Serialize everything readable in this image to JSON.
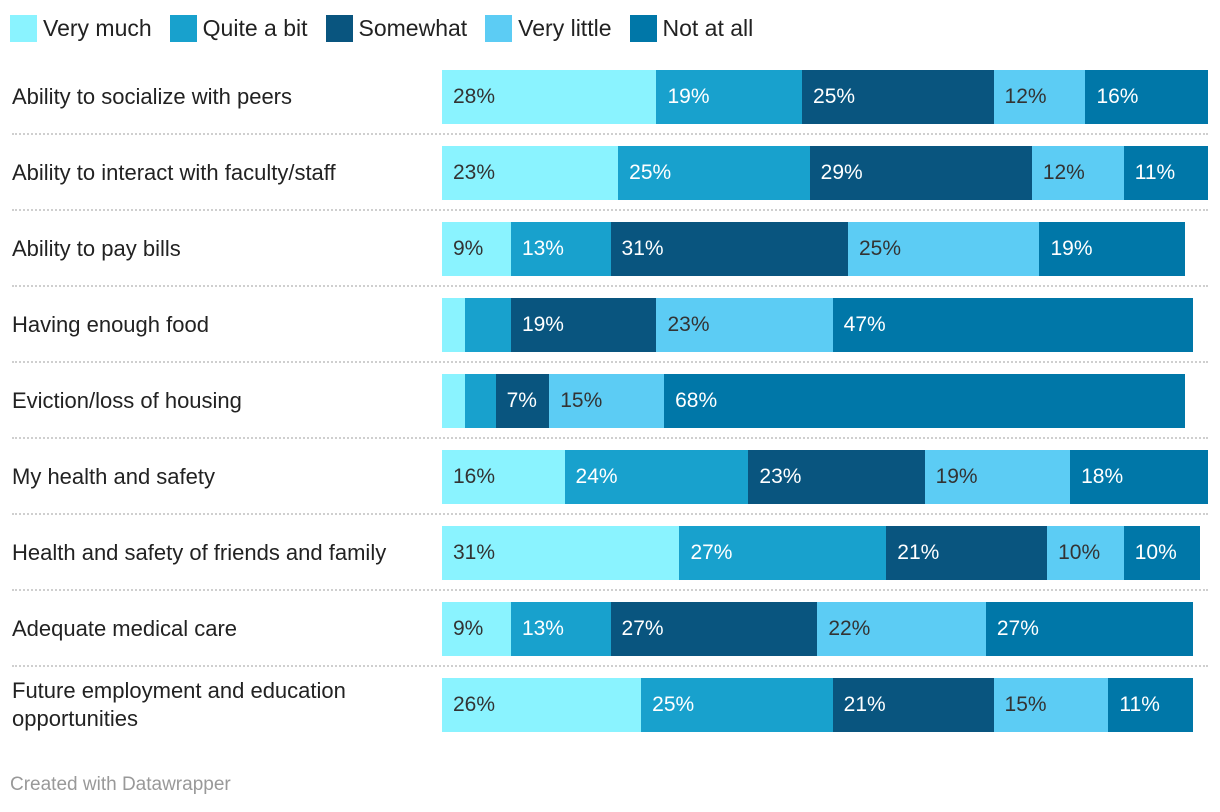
{
  "legend": [
    {
      "label": "Very much",
      "color": "#8AF3FF"
    },
    {
      "label": "Quite a bit",
      "color": "#18A1CD"
    },
    {
      "label": "Somewhat",
      "color": "#09557F"
    },
    {
      "label": "Very little",
      "color": "#5CCCF4"
    },
    {
      "label": "Not at all",
      "color": "#0077A8"
    }
  ],
  "chart_data": {
    "type": "bar",
    "orientation": "horizontal",
    "stacked": true,
    "xlim": [
      0,
      100
    ],
    "categories": [
      "Ability to socialize with peers",
      "Ability to interact with faculty/staff",
      "Ability to pay bills",
      "Having enough food",
      "Eviction/loss of housing",
      "My health and safety",
      "Health and safety of friends and family",
      "Adequate medical care",
      "Future employment and education opportunities"
    ],
    "series": [
      {
        "name": "Very much",
        "values": [
          28,
          23,
          9,
          3,
          3,
          16,
          31,
          9,
          26
        ],
        "labels": [
          "28%",
          "23%",
          "9%",
          "",
          "",
          "16%",
          "31%",
          "9%",
          "26%"
        ]
      },
      {
        "name": "Quite a bit",
        "values": [
          19,
          25,
          13,
          6,
          4,
          24,
          27,
          13,
          25
        ],
        "labels": [
          "19%",
          "25%",
          "13%",
          "",
          "",
          "24%",
          "27%",
          "13%",
          "25%"
        ]
      },
      {
        "name": "Somewhat",
        "values": [
          25,
          29,
          31,
          19,
          7,
          23,
          21,
          27,
          21
        ],
        "labels": [
          "25%",
          "29%",
          "31%",
          "19%",
          "7%",
          "23%",
          "21%",
          "27%",
          "21%"
        ]
      },
      {
        "name": "Very little",
        "values": [
          12,
          12,
          25,
          23,
          15,
          19,
          10,
          22,
          15
        ],
        "labels": [
          "12%",
          "12%",
          "25%",
          "23%",
          "15%",
          "19%",
          "10%",
          "22%",
          "15%"
        ]
      },
      {
        "name": "Not at all",
        "values": [
          16,
          11,
          19,
          47,
          68,
          18,
          10,
          27,
          11
        ],
        "labels": [
          "16%",
          "11%",
          "19%",
          "47%",
          "68%",
          "18%",
          "10%",
          "27%",
          "11%"
        ]
      }
    ]
  },
  "footer": {
    "credit": "Created with Datawrapper"
  }
}
